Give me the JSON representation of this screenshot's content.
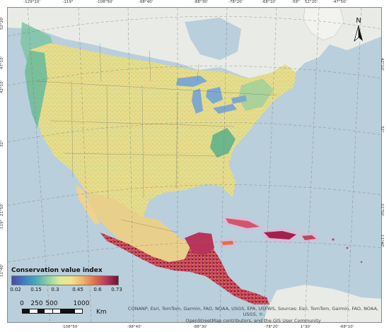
{
  "ticks": {
    "top": [
      "-129°10'",
      "-119°",
      "-108°50'",
      "-98°40'",
      "-88°30'",
      "-78°20'",
      "-68°10'",
      "-58°",
      "52°20'",
      "-47°50'"
    ],
    "bottom": [
      "-108°50'",
      "-98°40'",
      "-88°30'",
      "-78°20'",
      "1°30'",
      "-68°10'"
    ],
    "left": [
      "52°20'",
      "47°10'",
      "42°10'",
      "32°",
      "21°50'",
      "-119°",
      "11°40'"
    ],
    "right": [
      "42°10'",
      "32°",
      "21°50'",
      "11°40'"
    ]
  },
  "north_arrow": {
    "label": "N",
    "icon": "north-arrow-icon"
  },
  "legend": {
    "title": "Conservation value index",
    "labels": [
      "0.02",
      "0.15",
      "0.3",
      "0.45",
      "0.6",
      "0.73"
    ],
    "ramp_colors": [
      "#4b4aa6",
      "#3f7cc0",
      "#47a8b8",
      "#8ccfa5",
      "#d9ea9a",
      "#f2e38e",
      "#f0b36a",
      "#e0704a",
      "#b83a5a",
      "#6a1237"
    ]
  },
  "scale_bar": {
    "labels": [
      "0",
      "250",
      "500",
      "1000"
    ],
    "unit": "Km"
  },
  "attribution": {
    "line1": "CONANP, Esri, TomTom, Garmin, FAO, NOAA, USGS, EPA, USFWS, Sources: Esri, TomTom, Garmin, FAO, NOAA, USGS, ©",
    "line2": "OpenStreetMap contributors, and the GIS User Community"
  },
  "colors": {
    "ocean": "#b9cfdb",
    "land_background": "#e9ece6",
    "lakes": "#7fa8cf",
    "low_value": "#6fc0a0",
    "mid_value": "#e9e08a",
    "high_value": "#a3204a",
    "island_glow": "#f7a8d6"
  }
}
